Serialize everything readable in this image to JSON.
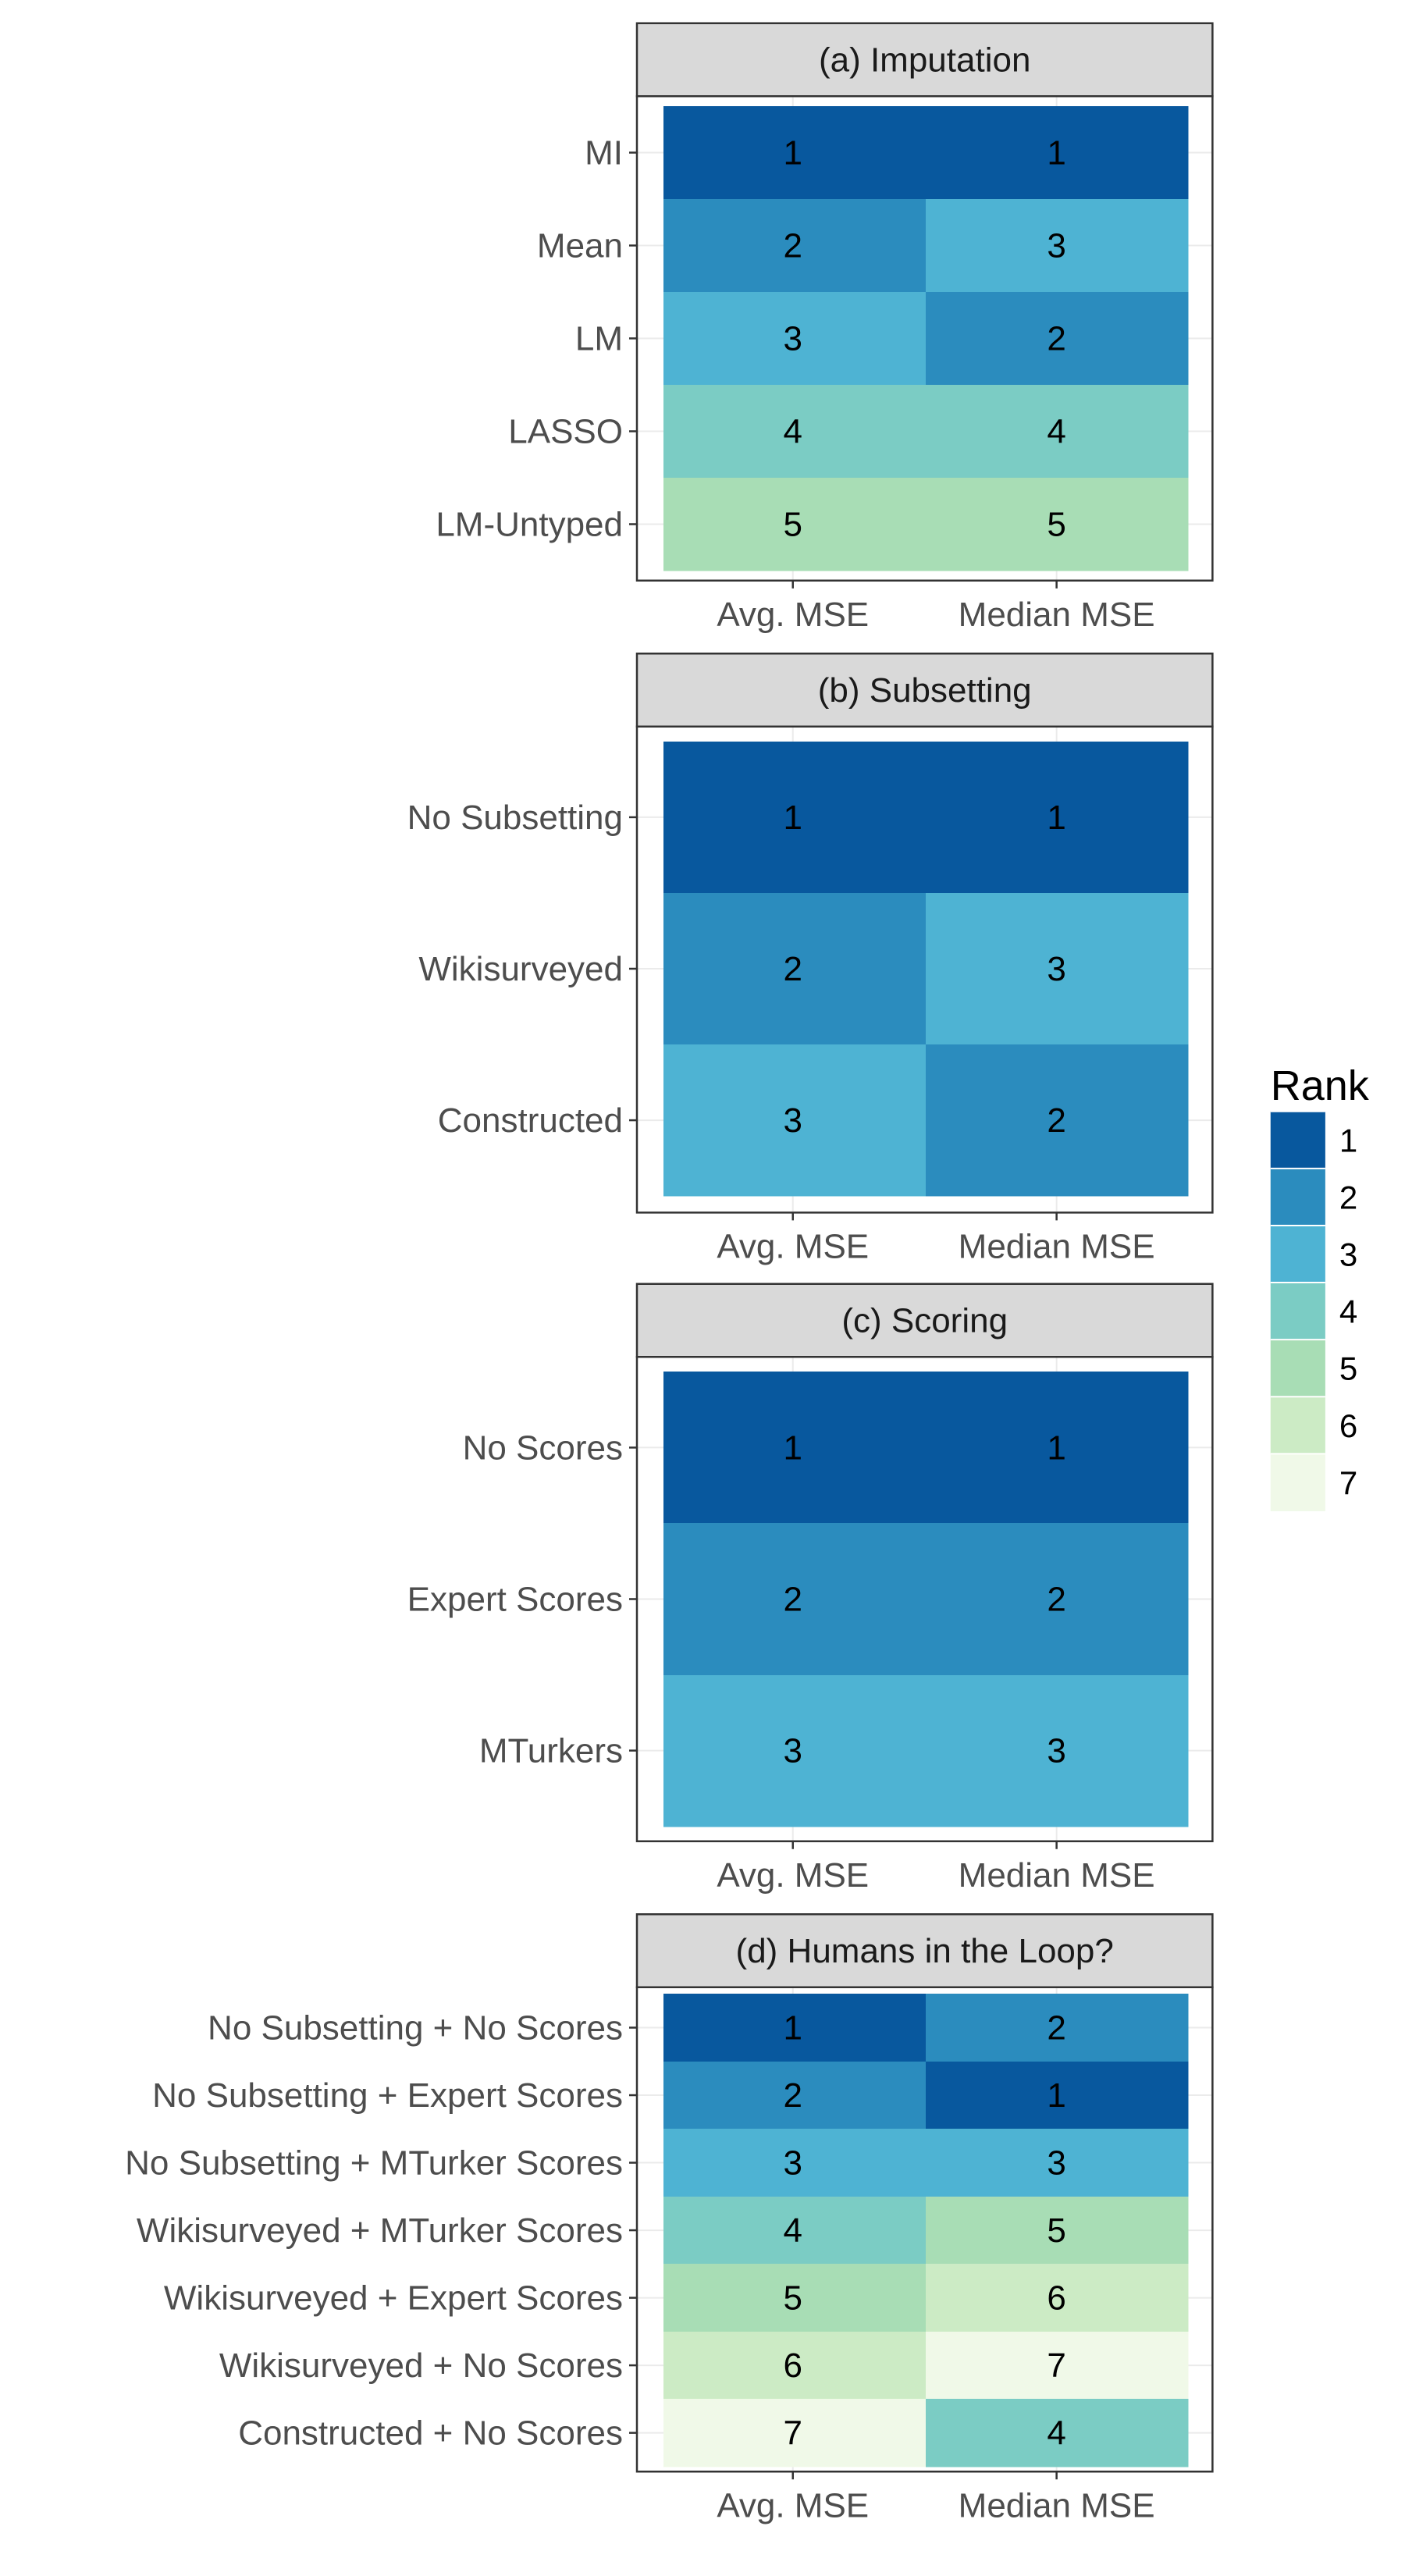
{
  "chart_data": {
    "type": "heatmap",
    "legend": {
      "title": "Rank",
      "placement": "right",
      "levels": [
        "1",
        "2",
        "3",
        "4",
        "5",
        "6",
        "7"
      ],
      "colors": [
        "#08589e",
        "#2b8cbe",
        "#4eb3d3",
        "#7bccc4",
        "#a8ddb5",
        "#ccebc5",
        "#f0f9e8"
      ]
    },
    "panels": [
      {
        "title": "(a) Imputation",
        "columns": [
          "Avg. MSE",
          "Median MSE"
        ],
        "rows": [
          "MI",
          "Mean",
          "LM",
          "LASSO",
          "LM-Untyped"
        ],
        "values": [
          [
            1,
            1
          ],
          [
            2,
            3
          ],
          [
            3,
            2
          ],
          [
            4,
            4
          ],
          [
            5,
            5
          ]
        ]
      },
      {
        "title": "(b) Subsetting",
        "columns": [
          "Avg. MSE",
          "Median MSE"
        ],
        "rows": [
          "No Subsetting",
          "Wikisurveyed",
          "Constructed"
        ],
        "values": [
          [
            1,
            1
          ],
          [
            2,
            3
          ],
          [
            3,
            2
          ]
        ]
      },
      {
        "title": "(c) Scoring",
        "columns": [
          "Avg. MSE",
          "Median MSE"
        ],
        "rows": [
          "No Scores",
          "Expert Scores",
          "MTurkers"
        ],
        "values": [
          [
            1,
            1
          ],
          [
            2,
            2
          ],
          [
            3,
            3
          ]
        ]
      },
      {
        "title": "(d) Humans in the Loop?",
        "columns": [
          "Avg. MSE",
          "Median MSE"
        ],
        "rows": [
          "No Subsetting + No Scores",
          "No Subsetting + Expert Scores",
          "No Subsetting + MTurker Scores",
          "Wikisurveyed + MTurker Scores",
          "Wikisurveyed + Expert Scores",
          "Wikisurveyed + No Scores",
          "Constructed + No Scores"
        ],
        "values": [
          [
            1,
            2
          ],
          [
            2,
            1
          ],
          [
            3,
            3
          ],
          [
            4,
            5
          ],
          [
            5,
            6
          ],
          [
            6,
            7
          ],
          [
            7,
            4
          ]
        ]
      }
    ]
  }
}
